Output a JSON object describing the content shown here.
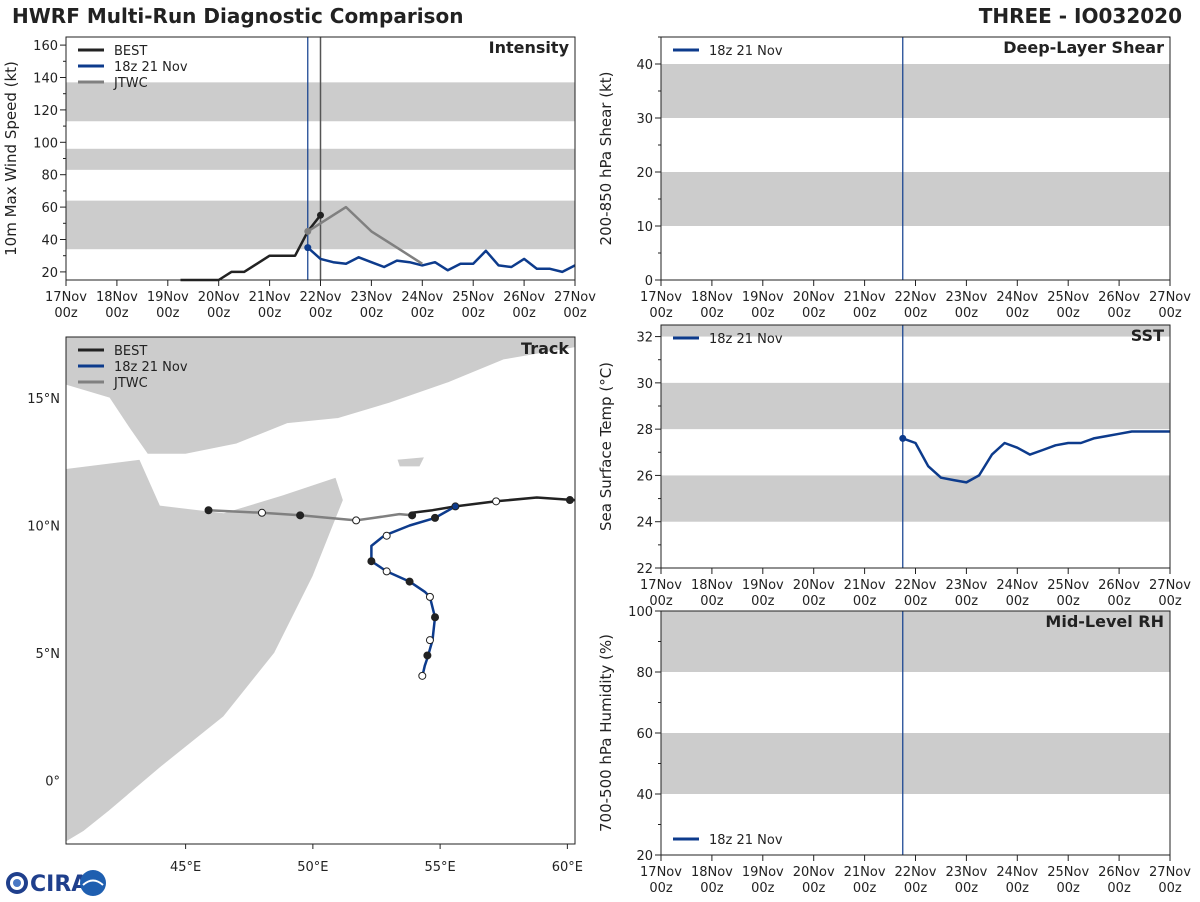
{
  "header": {
    "title": "HWRF Multi-Run Diagnostic Comparison",
    "storm": "THREE - IO032020"
  },
  "logo": {
    "text": "CIRA"
  },
  "colors": {
    "best": "#222222",
    "run": "#0d3b8c",
    "jtwc": "#808080",
    "band": "#cccccc"
  },
  "time_axis": {
    "ticks": [
      {
        "day": "17Nov",
        "hour": "00z"
      },
      {
        "day": "18Nov",
        "hour": "00z"
      },
      {
        "day": "19Nov",
        "hour": "00z"
      },
      {
        "day": "20Nov",
        "hour": "00z"
      },
      {
        "day": "21Nov",
        "hour": "00z"
      },
      {
        "day": "22Nov",
        "hour": "00z"
      },
      {
        "day": "23Nov",
        "hour": "00z"
      },
      {
        "day": "24Nov",
        "hour": "00z"
      },
      {
        "day": "25Nov",
        "hour": "00z"
      },
      {
        "day": "26Nov",
        "hour": "00z"
      },
      {
        "day": "27Nov",
        "hour": "00z"
      }
    ],
    "init_time_day": 4.75,
    "analysis_time_day": 5.0
  },
  "chart_data": [
    {
      "id": "intensity",
      "type": "line",
      "title": "Intensity",
      "ylabel": "10m Max Wind Speed (kt)",
      "xlim_days": [
        0,
        10
      ],
      "ylim": [
        15,
        165
      ],
      "yticks": [
        20,
        40,
        60,
        80,
        100,
        120,
        140,
        160
      ],
      "bands": [
        [
          34,
          64
        ],
        [
          83,
          96
        ],
        [
          113,
          137
        ]
      ],
      "legend": [
        "BEST",
        "18z 21 Nov",
        "JTWC"
      ],
      "series": [
        {
          "name": "BEST",
          "x": [
            2.25,
            2.5,
            2.75,
            3.0,
            3.25,
            3.5,
            3.75,
            4.0,
            4.25,
            4.5,
            4.75,
            5.0
          ],
          "y": [
            15,
            15,
            15,
            15,
            20,
            20,
            25,
            30,
            30,
            30,
            45,
            55
          ],
          "end_marker": true
        },
        {
          "name": "18z 21 Nov",
          "x": [
            4.75,
            5.0,
            5.25,
            5.5,
            5.75,
            6.0,
            6.25,
            6.5,
            6.75,
            7.0,
            7.25,
            7.5,
            7.75,
            8.0,
            8.25,
            8.5,
            8.75,
            9.0,
            9.25,
            9.5,
            9.75,
            10.0
          ],
          "y": [
            35,
            28,
            26,
            25,
            29,
            26,
            23,
            27,
            26,
            24,
            26,
            21,
            25,
            25,
            33,
            24,
            23,
            28,
            22,
            22,
            20,
            24
          ],
          "start_marker": true
        },
        {
          "name": "JTWC",
          "x": [
            4.75,
            5.0,
            5.25,
            5.5,
            6.0,
            6.5,
            7.0
          ],
          "y": [
            45,
            50,
            55,
            60,
            45,
            35,
            25
          ],
          "start_marker": true
        }
      ]
    },
    {
      "id": "shear",
      "type": "line",
      "title": "Deep-Layer Shear",
      "ylabel": "200-850 hPa Shear (kt)",
      "xlim_days": [
        0,
        10
      ],
      "ylim": [
        0,
        45
      ],
      "yticks": [
        0,
        10,
        20,
        30,
        40
      ],
      "bands": [
        [
          10,
          20
        ],
        [
          30,
          40
        ]
      ],
      "legend": [
        "18z 21 Nov"
      ],
      "series": [
        {
          "name": "18z 21 Nov",
          "x": [],
          "y": []
        }
      ]
    },
    {
      "id": "sst",
      "type": "line",
      "title": "SST",
      "ylabel": "Sea Surface Temp (°C)",
      "xlim_days": [
        0,
        10
      ],
      "ylim": [
        22,
        32.5
      ],
      "yticks": [
        22,
        24,
        26,
        28,
        30,
        32
      ],
      "bands": [
        [
          24,
          26
        ],
        [
          28,
          30
        ],
        [
          32,
          32.5
        ]
      ],
      "legend": [
        "18z 21 Nov"
      ],
      "series": [
        {
          "name": "18z 21 Nov",
          "x": [
            4.75,
            5.0,
            5.25,
            5.5,
            5.75,
            6.0,
            6.25,
            6.5,
            6.75,
            7.0,
            7.25,
            7.5,
            7.75,
            8.0,
            8.25,
            8.5,
            8.75,
            9.0,
            9.25,
            9.5,
            9.75,
            10.0
          ],
          "y": [
            27.6,
            27.4,
            26.4,
            25.9,
            25.8,
            25.7,
            26.0,
            26.9,
            27.4,
            27.2,
            26.9,
            27.1,
            27.3,
            27.4,
            27.4,
            27.6,
            27.7,
            27.8,
            27.9,
            27.9,
            27.9,
            27.9
          ],
          "start_marker": true
        }
      ]
    },
    {
      "id": "rh",
      "type": "line",
      "title": "Mid-Level RH",
      "ylabel": "700-500 hPa Humidity (%)",
      "xlim_days": [
        0,
        10
      ],
      "ylim": [
        20,
        100
      ],
      "yticks": [
        20,
        40,
        60,
        80,
        100
      ],
      "bands": [
        [
          40,
          60
        ],
        [
          80,
          100
        ]
      ],
      "legend": [
        "18z 21 Nov"
      ],
      "legend_position": "bottom-left",
      "series": [
        {
          "name": "18z 21 Nov",
          "x": [],
          "y": []
        }
      ]
    },
    {
      "id": "track",
      "type": "map",
      "title": "Track",
      "lon_range": [
        40.3,
        60.3
      ],
      "lat_range": [
        -2.5,
        17.4
      ],
      "lon_ticks": [
        {
          "value": 45,
          "label": "45°E"
        },
        {
          "value": 50,
          "label": "50°E"
        },
        {
          "value": 55,
          "label": "55°E"
        },
        {
          "value": 60,
          "label": "60°E"
        }
      ],
      "lat_ticks": [
        {
          "value": 15,
          "label": "15°N"
        },
        {
          "value": 10,
          "label": "10°N"
        },
        {
          "value": 5,
          "label": "5°N"
        },
        {
          "value": 0,
          "label": "0°"
        }
      ],
      "legend": [
        "BEST",
        "18z 21 Nov",
        "JTWC"
      ],
      "series": [
        {
          "name": "BEST",
          "lon": [
            60.3,
            58.8,
            57.2,
            55.6,
            54.7,
            53.9
          ],
          "lat": [
            11.0,
            11.1,
            10.95,
            10.75,
            10.6,
            10.5
          ],
          "markers": [
            {
              "lon": 60.1,
              "lat": 11.0,
              "filled": true
            },
            {
              "lon": 57.2,
              "lat": 10.95,
              "filled": false
            }
          ]
        },
        {
          "name": "18z 21 Nov",
          "lon": [
            55.6,
            54.8,
            53.8,
            52.8,
            52.3,
            52.3,
            52.9,
            53.8,
            54.4,
            54.6,
            54.8,
            54.7,
            54.5,
            54.4,
            54.35,
            54.3
          ],
          "lat": [
            10.75,
            10.3,
            10.0,
            9.6,
            9.2,
            8.6,
            8.2,
            7.8,
            7.4,
            7.2,
            6.4,
            5.5,
            4.8,
            4.5,
            4.3,
            4.1
          ],
          "markers": [
            {
              "lon": 55.6,
              "lat": 10.75,
              "filled": true
            },
            {
              "lon": 54.8,
              "lat": 10.3,
              "filled": true
            },
            {
              "lon": 52.9,
              "lat": 9.6,
              "filled": false
            },
            {
              "lon": 52.3,
              "lat": 8.6,
              "filled": true
            },
            {
              "lon": 52.9,
              "lat": 8.2,
              "filled": false
            },
            {
              "lon": 53.8,
              "lat": 7.8,
              "filled": true
            },
            {
              "lon": 54.6,
              "lat": 7.2,
              "filled": false
            },
            {
              "lon": 54.8,
              "lat": 6.4,
              "filled": true
            },
            {
              "lon": 54.6,
              "lat": 5.5,
              "filled": false
            },
            {
              "lon": 54.5,
              "lat": 4.9,
              "filled": true
            },
            {
              "lon": 54.3,
              "lat": 4.1,
              "filled": false
            }
          ]
        },
        {
          "name": "JTWC",
          "lon": [
            53.9,
            53.4,
            52.4,
            51.7,
            49.5,
            48.0,
            45.9
          ],
          "lat": [
            10.4,
            10.45,
            10.3,
            10.2,
            10.4,
            10.5,
            10.6
          ],
          "markers": [
            {
              "lon": 53.9,
              "lat": 10.4,
              "filled": true
            },
            {
              "lon": 51.7,
              "lat": 10.2,
              "filled": false
            },
            {
              "lon": 49.5,
              "lat": 10.4,
              "filled": true
            },
            {
              "lon": 48.0,
              "lat": 10.5,
              "filled": false
            },
            {
              "lon": 45.9,
              "lat": 10.6,
              "filled": true
            }
          ]
        }
      ]
    }
  ]
}
